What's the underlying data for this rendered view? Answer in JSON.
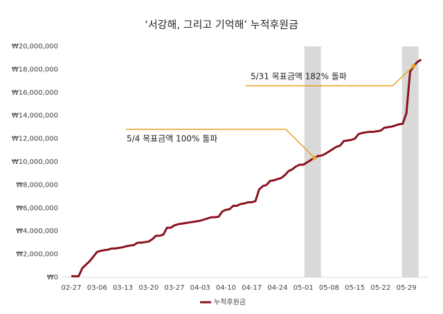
{
  "chart_data": {
    "type": "line",
    "title": "‘서강해, 그리고 기억해’ 누적후원금",
    "categories": [
      "02-27",
      null,
      null,
      null,
      null,
      null,
      null,
      "03-06",
      null,
      null,
      null,
      null,
      null,
      null,
      "03-13",
      null,
      null,
      null,
      null,
      null,
      null,
      "03-20",
      null,
      null,
      null,
      null,
      null,
      null,
      "03-27",
      null,
      null,
      null,
      null,
      null,
      null,
      "04-03",
      null,
      null,
      null,
      null,
      null,
      null,
      "04-10",
      null,
      null,
      null,
      null,
      null,
      null,
      "04-17",
      null,
      null,
      null,
      null,
      null,
      null,
      "04-24",
      null,
      null,
      null,
      null,
      null,
      null,
      "05-01",
      null,
      null,
      null,
      null,
      null,
      null,
      "05-08",
      null,
      null,
      null,
      null,
      null,
      null,
      "05-15",
      null,
      null,
      null,
      null,
      null,
      null,
      "05-22",
      null,
      null,
      null,
      null,
      null,
      null,
      "05-29",
      null,
      null,
      null,
      null
    ],
    "series": [
      {
        "name": "누적후원금",
        "color": "#8b1020",
        "values": [
          100000,
          100000,
          100000,
          800000,
          1100000,
          1400000,
          1800000,
          2200000,
          2300000,
          2350000,
          2400000,
          2500000,
          2500000,
          2550000,
          2600000,
          2700000,
          2750000,
          2800000,
          3000000,
          3000000,
          3050000,
          3100000,
          3300000,
          3600000,
          3600000,
          3700000,
          4300000,
          4300000,
          4500000,
          4600000,
          4650000,
          4700000,
          4750000,
          4800000,
          4850000,
          4900000,
          5000000,
          5100000,
          5200000,
          5200000,
          5250000,
          5700000,
          5850000,
          5900000,
          6200000,
          6200000,
          6350000,
          6400000,
          6500000,
          6500000,
          6600000,
          7600000,
          7900000,
          8000000,
          8350000,
          8400000,
          8500000,
          8600000,
          8850000,
          9200000,
          9350000,
          9600000,
          9750000,
          9750000,
          9950000,
          10150000,
          10350000,
          10500000,
          10550000,
          10700000,
          10900000,
          11100000,
          11300000,
          11400000,
          11800000,
          11850000,
          11900000,
          12000000,
          12400000,
          12500000,
          12550000,
          12600000,
          12600000,
          12650000,
          12700000,
          12950000,
          13000000,
          13050000,
          13150000,
          13250000,
          13300000,
          14200000,
          17800000,
          18300000,
          18650000,
          18850000
        ]
      }
    ],
    "ylim": [
      0,
      20000000
    ],
    "yticks": [
      {
        "value": 0,
        "label": "₩0"
      },
      {
        "value": 2000000,
        "label": "₩2,000,000"
      },
      {
        "value": 4000000,
        "label": "₩4,000,000"
      },
      {
        "value": 6000000,
        "label": "₩6,000,000"
      },
      {
        "value": 8000000,
        "label": "₩8,000,000"
      },
      {
        "value": 10000000,
        "label": "₩10,000,000"
      },
      {
        "value": 12000000,
        "label": "₩12,000,000"
      },
      {
        "value": 14000000,
        "label": "₩14,000,000"
      },
      {
        "value": 16000000,
        "label": "₩16,000,000"
      },
      {
        "value": 18000000,
        "label": "₩18,000,000"
      },
      {
        "value": 20000000,
        "label": "₩20,000,000"
      }
    ],
    "annotations": [
      "5/4 목표금액 100% 돌파",
      "5/31 목표금액 182% 돌파"
    ],
    "annotation_color": "#e8a020",
    "grid": false,
    "legend": "bottom"
  }
}
